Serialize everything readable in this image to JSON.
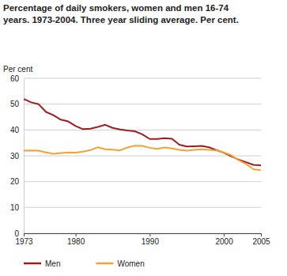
{
  "chart_data": {
    "type": "line",
    "title": [
      "Percentage of daily smokers, women and men 16-74",
      "years. 1973-2004. Three year sliding average. Per cent."
    ],
    "y_label": "Per cent",
    "x": [
      1973,
      1974,
      1975,
      1976,
      1977,
      1978,
      1979,
      1980,
      1981,
      1982,
      1983,
      1984,
      1985,
      1986,
      1987,
      1988,
      1989,
      1990,
      1991,
      1992,
      1993,
      1994,
      1995,
      1996,
      1997,
      1998,
      1999,
      2000,
      2001,
      2002,
      2003,
      2004,
      2005
    ],
    "series": [
      {
        "name": "Men",
        "color": "#9e1b20",
        "values": [
          52,
          50.7,
          50,
          47,
          45.7,
          44,
          43.3,
          41.5,
          40.3,
          40.5,
          41.2,
          42,
          40.8,
          40.2,
          39.8,
          39.5,
          38.3,
          36.5,
          36.5,
          36.8,
          36.6,
          34.3,
          33.6,
          33.7,
          33.8,
          33.3,
          32.2,
          31.2,
          29.8,
          28.5,
          27.5,
          26.5,
          26.3
        ]
      },
      {
        "name": "Women",
        "color": "#f4a233",
        "values": [
          32,
          32.1,
          32,
          31.3,
          30.8,
          31.1,
          31.3,
          31.2,
          31.6,
          32.2,
          33.3,
          32.5,
          32.4,
          32.1,
          33.2,
          33.9,
          33.8,
          33.1,
          32.7,
          33.2,
          32.8,
          32.3,
          32,
          32.3,
          32.5,
          32.3,
          32.1,
          31.3,
          30.2,
          28.3,
          26.8,
          24.8,
          24.4
        ]
      }
    ],
    "xlim": [
      1973,
      2005
    ],
    "xticks": [
      1973,
      1980,
      1990,
      2000,
      2005
    ],
    "ylim": [
      0,
      60
    ],
    "yticks": [
      0,
      10,
      20,
      30,
      40,
      50,
      60
    ],
    "grid": true,
    "legend": "bottom"
  }
}
